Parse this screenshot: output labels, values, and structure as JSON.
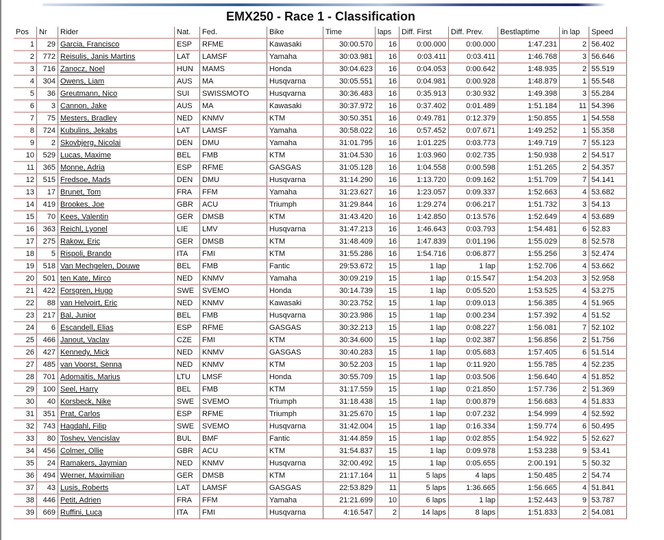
{
  "title": "EMX250 - Race 1 - Classification",
  "columns": [
    "Pos",
    "Nr",
    "Rider",
    "Nat.",
    "Fed.",
    "Bike",
    "Time",
    "laps",
    "Diff. First",
    "Diff. Prev.",
    "Bestlaptime",
    "in lap",
    "Speed"
  ],
  "rows": [
    [
      "1",
      "29",
      "Garcia, Francisco",
      "ESP",
      "RFME",
      "Kawasaki",
      "30:00.570",
      "16",
      "0:00.000",
      "0:00.000",
      "1:47.231",
      "2",
      "56.402"
    ],
    [
      "2",
      "772",
      "Reisulis, Janis Martins",
      "LAT",
      "LAMSF",
      "Yamaha",
      "30:03.981",
      "16",
      "0:03.411",
      "0:03.411",
      "1:46.768",
      "3",
      "56.646"
    ],
    [
      "3",
      "716",
      "Zanocz, Noel",
      "HUN",
      "MAMS",
      "Honda",
      "30:04.623",
      "16",
      "0:04.053",
      "0:00.642",
      "1:48.935",
      "2",
      "55.519"
    ],
    [
      "4",
      "304",
      "Owens, Liam",
      "AUS",
      "MA",
      "Husqvarna",
      "30:05.551",
      "16",
      "0:04.981",
      "0:00.928",
      "1:48.879",
      "1",
      "55.548"
    ],
    [
      "5",
      "36",
      "Greutmann, Nico",
      "SUI",
      "SWISSMOTO",
      "Husqvarna",
      "30:36.483",
      "16",
      "0:35.913",
      "0:30.932",
      "1:49.398",
      "3",
      "55.284"
    ],
    [
      "6",
      "3",
      "Cannon, Jake",
      "AUS",
      "MA",
      "Kawasaki",
      "30:37.972",
      "16",
      "0:37.402",
      "0:01.489",
      "1:51.184",
      "11",
      "54.396"
    ],
    [
      "7",
      "75",
      "Mesters, Bradley",
      "NED",
      "KNMV",
      "KTM",
      "30:50.351",
      "16",
      "0:49.781",
      "0:12.379",
      "1:50.855",
      "1",
      "54.558"
    ],
    [
      "8",
      "724",
      "Kubulins, Jekabs",
      "LAT",
      "LAMSF",
      "Yamaha",
      "30:58.022",
      "16",
      "0:57.452",
      "0:07.671",
      "1:49.252",
      "1",
      "55.358"
    ],
    [
      "9",
      "2",
      "Skovbjerg, Nicolai",
      "DEN",
      "DMU",
      "Yamaha",
      "31:01.795",
      "16",
      "1:01.225",
      "0:03.773",
      "1:49.719",
      "7",
      "55.123"
    ],
    [
      "10",
      "529",
      "Lucas, Maxime",
      "BEL",
      "FMB",
      "KTM",
      "31:04.530",
      "16",
      "1:03.960",
      "0:02.735",
      "1:50.938",
      "2",
      "54.517"
    ],
    [
      "11",
      "365",
      "Monne, Adria",
      "ESP",
      "RFME",
      "GASGAS",
      "31:05.128",
      "16",
      "1:04.558",
      "0:00.598",
      "1:51.265",
      "2",
      "54.357"
    ],
    [
      "12",
      "515",
      "Fredsoe, Mads",
      "DEN",
      "DMU",
      "Husqvarna",
      "31:14.290",
      "16",
      "1:13.720",
      "0:09.162",
      "1:51.709",
      "7",
      "54.141"
    ],
    [
      "13",
      "17",
      "Brunet, Tom",
      "FRA",
      "FFM",
      "Yamaha",
      "31:23.627",
      "16",
      "1:23.057",
      "0:09.337",
      "1:52.663",
      "4",
      "53.682"
    ],
    [
      "14",
      "419",
      "Brookes, Joe",
      "GBR",
      "ACU",
      "Triumph",
      "31:29.844",
      "16",
      "1:29.274",
      "0:06.217",
      "1:51.732",
      "3",
      "54.13"
    ],
    [
      "15",
      "70",
      "Kees, Valentin",
      "GER",
      "DMSB",
      "KTM",
      "31:43.420",
      "16",
      "1:42.850",
      "0:13.576",
      "1:52.649",
      "4",
      "53.689"
    ],
    [
      "16",
      "363",
      "Reichl, Lyonel",
      "LIE",
      "LMV",
      "Husqvarna",
      "31:47.213",
      "16",
      "1:46.643",
      "0:03.793",
      "1:54.481",
      "6",
      "52.83"
    ],
    [
      "17",
      "275",
      "Rakow, Eric",
      "GER",
      "DMSB",
      "KTM",
      "31:48.409",
      "16",
      "1:47.839",
      "0:01.196",
      "1:55.029",
      "8",
      "52.578"
    ],
    [
      "18",
      "5",
      "Rispoli, Brando",
      "ITA",
      "FMI",
      "KTM",
      "31:55.286",
      "16",
      "1:54.716",
      "0:06.877",
      "1:55.256",
      "3",
      "52.474"
    ],
    [
      "19",
      "518",
      "Van Mechgelen, Douwe",
      "BEL",
      "FMB",
      "Fantic",
      "29:53.672",
      "15",
      "1 lap",
      "1 lap",
      "1:52.706",
      "4",
      "53.662"
    ],
    [
      "20",
      "501",
      "ten Kate, Mirco",
      "NED",
      "KNMV",
      "Yamaha",
      "30:09.219",
      "15",
      "1 lap",
      "0:15.547",
      "1:54.203",
      "3",
      "52.958"
    ],
    [
      "21",
      "422",
      "Forsgren, Hugo",
      "SWE",
      "SVEMO",
      "Honda",
      "30:14.739",
      "15",
      "1 lap",
      "0:05.520",
      "1:53.525",
      "4",
      "53.275"
    ],
    [
      "22",
      "88",
      "van Helvoirt, Eric",
      "NED",
      "KNMV",
      "Kawasaki",
      "30:23.752",
      "15",
      "1 lap",
      "0:09.013",
      "1:56.385",
      "4",
      "51.965"
    ],
    [
      "23",
      "217",
      "Bal, Junior",
      "BEL",
      "FMB",
      "Husqvarna",
      "30:23.986",
      "15",
      "1 lap",
      "0:00.234",
      "1:57.392",
      "4",
      "51.52"
    ],
    [
      "24",
      "6",
      "Escandell, Elias",
      "ESP",
      "RFME",
      "GASGAS",
      "30:32.213",
      "15",
      "1 lap",
      "0:08.227",
      "1:56.081",
      "7",
      "52.102"
    ],
    [
      "25",
      "466",
      "Janout, Vaclav",
      "CZE",
      "FMI",
      "KTM",
      "30:34.600",
      "15",
      "1 lap",
      "0:02.387",
      "1:56.856",
      "2",
      "51.756"
    ],
    [
      "26",
      "427",
      "Kennedy, Mick",
      "NED",
      "KNMV",
      "GASGAS",
      "30:40.283",
      "15",
      "1 lap",
      "0:05.683",
      "1:57.405",
      "6",
      "51.514"
    ],
    [
      "27",
      "485",
      "van Voorst, Senna",
      "NED",
      "KNMV",
      "KTM",
      "30:52.203",
      "15",
      "1 lap",
      "0:11.920",
      "1:55.785",
      "4",
      "52.235"
    ],
    [
      "28",
      "701",
      "Adomaitis, Marius",
      "LTU",
      "LMSF",
      "Honda",
      "30:55.709",
      "15",
      "1 lap",
      "0:03.506",
      "1:56.640",
      "4",
      "51.852"
    ],
    [
      "29",
      "100",
      "Seel, Harry",
      "BEL",
      "FMB",
      "KTM",
      "31:17.559",
      "15",
      "1 lap",
      "0:21.850",
      "1:57.736",
      "2",
      "51.369"
    ],
    [
      "30",
      "40",
      "Korsbeck, Nike",
      "SWE",
      "SVEMO",
      "Triumph",
      "31:18.438",
      "15",
      "1 lap",
      "0:00.879",
      "1:56.683",
      "4",
      "51.833"
    ],
    [
      "31",
      "351",
      "Prat, Carlos",
      "ESP",
      "RFME",
      "Triumph",
      "31:25.670",
      "15",
      "1 lap",
      "0:07.232",
      "1:54.999",
      "4",
      "52.592"
    ],
    [
      "32",
      "743",
      "Hagdahl, Filip",
      "SWE",
      "SVEMO",
      "Husqvarna",
      "31:42.004",
      "15",
      "1 lap",
      "0:16.334",
      "1:59.774",
      "6",
      "50.495"
    ],
    [
      "33",
      "80",
      "Toshev, Vencislav",
      "BUL",
      "BMF",
      "Fantic",
      "31:44.859",
      "15",
      "1 lap",
      "0:02.855",
      "1:54.922",
      "5",
      "52.627"
    ],
    [
      "34",
      "456",
      "Colmer, Ollie",
      "GBR",
      "ACU",
      "KTM",
      "31:54.837",
      "15",
      "1 lap",
      "0:09.978",
      "1:53.238",
      "9",
      "53.41"
    ],
    [
      "35",
      "24",
      "Ramakers, Jaymian",
      "NED",
      "KNMV",
      "Husqvarna",
      "32:00.492",
      "15",
      "1 lap",
      "0:05.655",
      "2:00.191",
      "5",
      "50.32"
    ],
    [
      "36",
      "494",
      "Werner, Maximilian",
      "GER",
      "DMSB",
      "KTM",
      "21:17.164",
      "11",
      "5 laps",
      "4 laps",
      "1:50.485",
      "2",
      "54.74"
    ],
    [
      "37",
      "43",
      "Lusis, Roberts",
      "LAT",
      "LAMSF",
      "GASGAS",
      "22:53.829",
      "11",
      "5 laps",
      "1:36.665",
      "1:56.665",
      "4",
      "51.841"
    ],
    [
      "38",
      "446",
      "Petit, Adrien",
      "FRA",
      "FFM",
      "Yamaha",
      "21:21.699",
      "10",
      "6 laps",
      "1 lap",
      "1:52.443",
      "9",
      "53.787"
    ],
    [
      "39",
      "669",
      "Ruffini, Luca",
      "ITA",
      "FMI",
      "Husqvarna",
      "4:16.547",
      "2",
      "14 laps",
      "8 laps",
      "1:51.833",
      "2",
      "54.081"
    ]
  ]
}
